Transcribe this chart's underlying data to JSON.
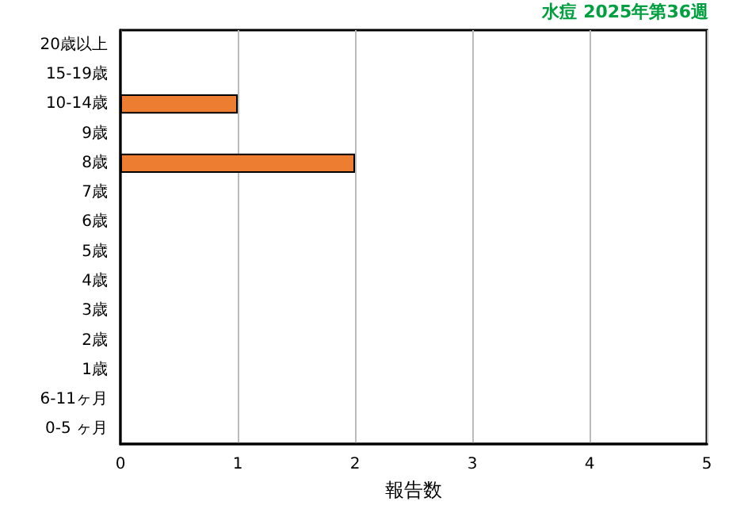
{
  "chart_data": {
    "type": "bar",
    "orientation": "horizontal",
    "title": "水痘 2025年第36週",
    "xlabel": "報告数",
    "categories": [
      "20歳以上",
      "15-19歳",
      "10-14歳",
      "9歳",
      "8歳",
      "7歳",
      "6歳",
      "5歳",
      "4歳",
      "3歳",
      "2歳",
      "1歳",
      "6-11ヶ月",
      "0-5 ヶ月"
    ],
    "values": [
      0,
      0,
      1,
      0,
      2,
      0,
      0,
      0,
      0,
      0,
      0,
      0,
      0,
      0
    ],
    "color": "#ed7d31",
    "xlim": [
      0,
      5
    ],
    "xticks": [
      0,
      1,
      2,
      3,
      4,
      5
    ],
    "grid": "x"
  }
}
